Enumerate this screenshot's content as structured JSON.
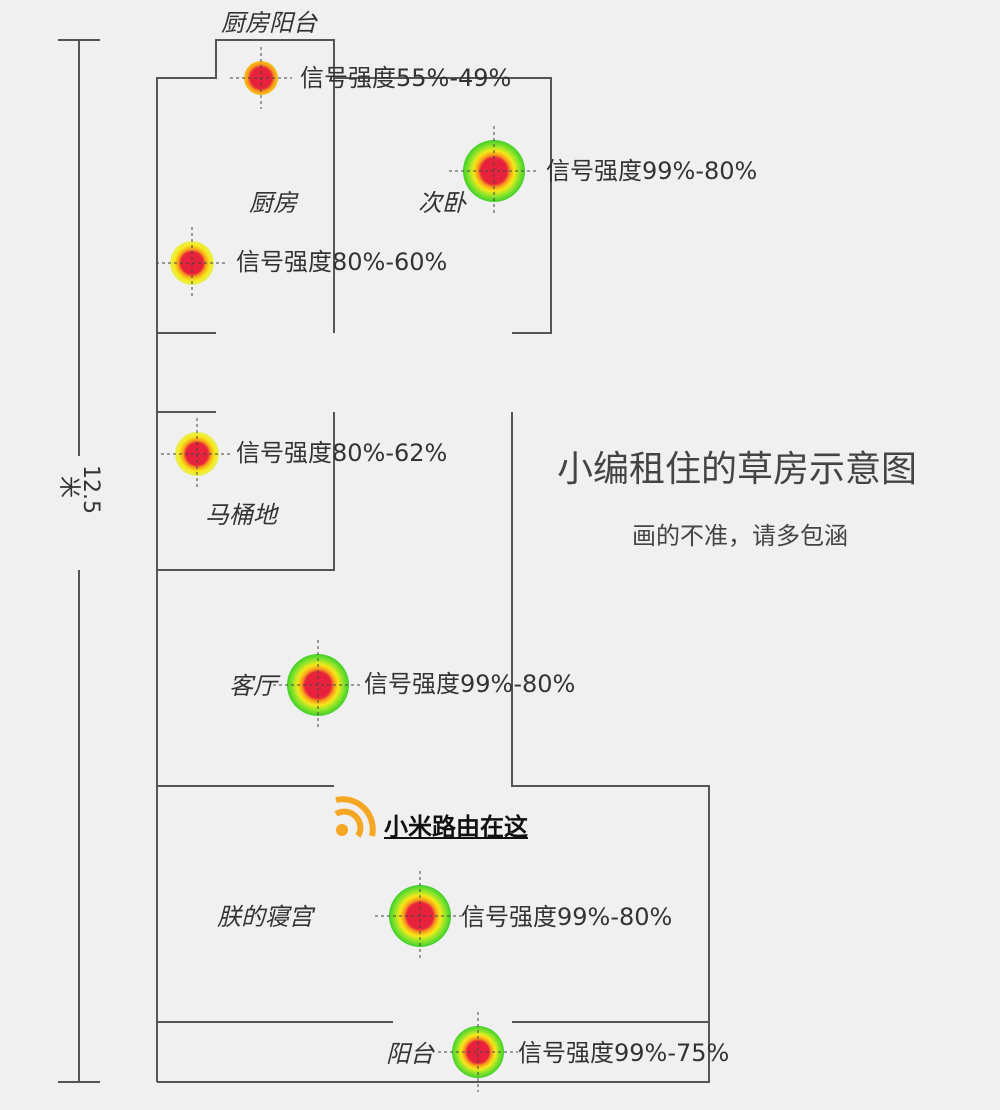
{
  "title": "小编租住的草房示意图",
  "subtitle": "画的不准，请多包涵",
  "dimension_label": "12.5米",
  "router_label": "小米路由在这",
  "rooms": [
    {
      "name": "厨房阳台"
    },
    {
      "name": "厨房"
    },
    {
      "name": "次卧"
    },
    {
      "name": "马桶地"
    },
    {
      "name": "客厅"
    },
    {
      "name": "朕的寝宫"
    },
    {
      "name": "阳台"
    }
  ],
  "signals": [
    {
      "room": "厨房阳台",
      "label": "信号强度55%-49%",
      "level": "weak"
    },
    {
      "room": "次卧",
      "label": "信号强度99%-80%",
      "level": "strong"
    },
    {
      "room": "厨房",
      "label": "信号强度80%-60%",
      "level": "medium"
    },
    {
      "room": "马桶地",
      "label": "信号强度80%-62%",
      "level": "medium"
    },
    {
      "room": "客厅",
      "label": "信号强度99%-80%",
      "level": "strong"
    },
    {
      "room": "朕的寝宫",
      "label": "信号强度99%-80%",
      "level": "strong"
    },
    {
      "room": "阳台",
      "label": "信号强度99%-75%",
      "level": "strong-medium"
    }
  ],
  "colors": {
    "wall": "#555555",
    "core": "#e8223c",
    "yellow": "#f7e81a",
    "green": "#5fd82a",
    "orange": "#f79a1a",
    "router_icon": "#f5a623"
  }
}
